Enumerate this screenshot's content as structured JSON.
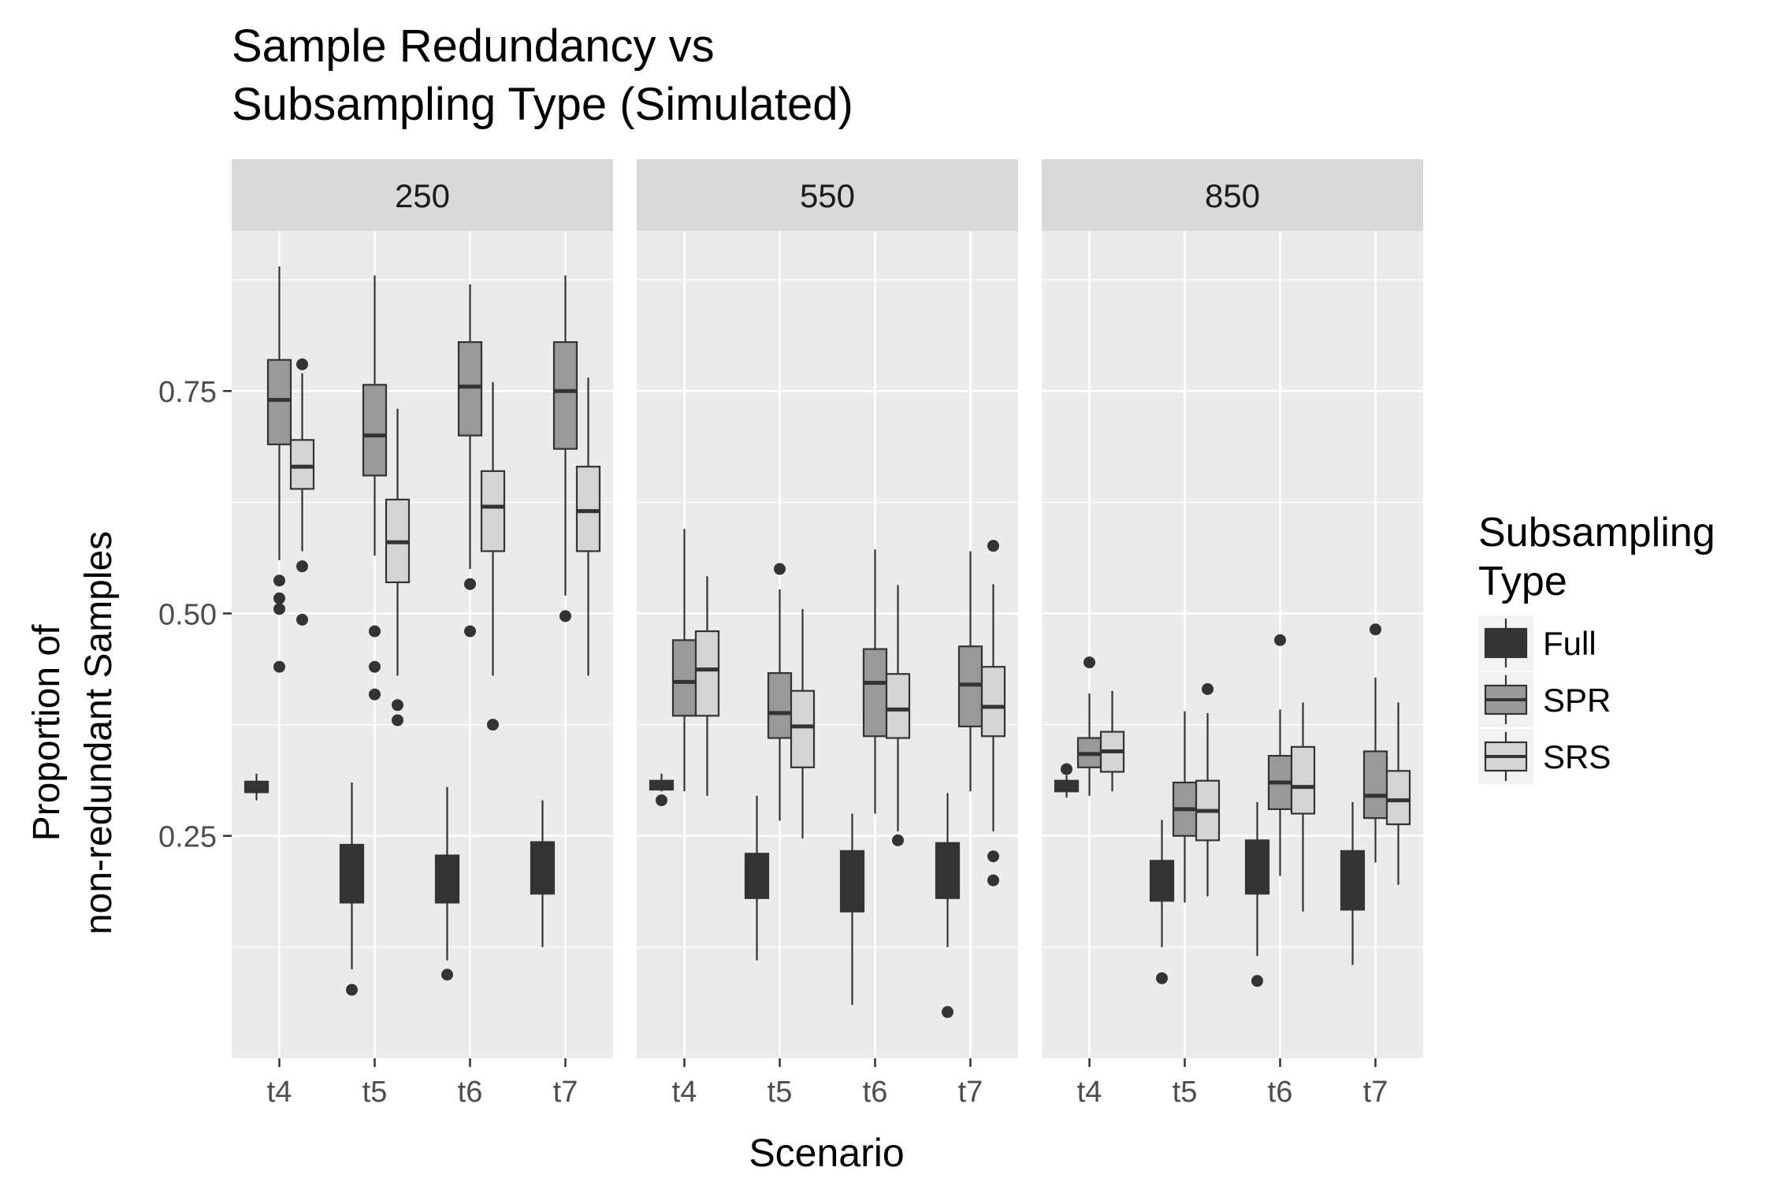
{
  "chart_data": {
    "type": "boxplot",
    "title_lines": [
      "Sample Redundancy vs",
      "Subsampling Type (Simulated)"
    ],
    "xlabel": "Scenario",
    "ylabel_lines": [
      "Proportion of",
      "non-redundant Samples"
    ],
    "ylim": [
      0.0,
      0.93
    ],
    "yticks": [
      0.25,
      0.5,
      0.75
    ],
    "ytick_labels": [
      "0.25",
      "0.50",
      "0.75"
    ],
    "categories": [
      "t4",
      "t5",
      "t6",
      "t7"
    ],
    "grid": true,
    "legend": {
      "title_lines": [
        "Subsampling",
        "Type"
      ],
      "placement": "right",
      "entries": [
        {
          "name": "Full",
          "fill": "#333333"
        },
        {
          "name": "SPR",
          "fill": "#999999"
        },
        {
          "name": "SRS",
          "fill": "#d4d4d4"
        }
      ]
    },
    "panels": [
      {
        "label": "250",
        "groups": [
          {
            "category": "t4",
            "boxes": {
              "Full": {
                "lo": 0.29,
                "q1": 0.299,
                "med": 0.303,
                "q3": 0.311,
                "hi": 0.32,
                "out": []
              },
              "SPR": {
                "lo": 0.56,
                "q1": 0.69,
                "med": 0.74,
                "q3": 0.785,
                "hi": 0.89,
                "out": [
                  0.537,
                  0.517,
                  0.505,
                  0.44
                ]
              },
              "SRS": {
                "lo": 0.57,
                "q1": 0.64,
                "med": 0.665,
                "q3": 0.695,
                "hi": 0.77,
                "out": [
                  0.78,
                  0.553,
                  0.493
                ]
              }
            }
          },
          {
            "category": "t5",
            "boxes": {
              "Full": {
                "lo": 0.1,
                "q1": 0.175,
                "med": 0.21,
                "q3": 0.24,
                "hi": 0.31,
                "out": [
                  0.077
                ]
              },
              "SPR": {
                "lo": 0.565,
                "q1": 0.655,
                "med": 0.7,
                "q3": 0.757,
                "hi": 0.88,
                "out": [
                  0.48,
                  0.44,
                  0.409
                ]
              },
              "SRS": {
                "lo": 0.43,
                "q1": 0.535,
                "med": 0.58,
                "q3": 0.628,
                "hi": 0.73,
                "out": [
                  0.397,
                  0.38
                ]
              }
            }
          },
          {
            "category": "t6",
            "boxes": {
              "Full": {
                "lo": 0.11,
                "q1": 0.175,
                "med": 0.21,
                "q3": 0.228,
                "hi": 0.305,
                "out": [
                  0.094
                ]
              },
              "SPR": {
                "lo": 0.55,
                "q1": 0.7,
                "med": 0.755,
                "q3": 0.805,
                "hi": 0.87,
                "out": [
                  0.533,
                  0.48
                ]
              },
              "SRS": {
                "lo": 0.43,
                "q1": 0.57,
                "med": 0.62,
                "q3": 0.66,
                "hi": 0.76,
                "out": [
                  0.375
                ]
              }
            }
          },
          {
            "category": "t7",
            "boxes": {
              "Full": {
                "lo": 0.125,
                "q1": 0.185,
                "med": 0.215,
                "q3": 0.243,
                "hi": 0.29,
                "out": []
              },
              "SPR": {
                "lo": 0.52,
                "q1": 0.685,
                "med": 0.75,
                "q3": 0.805,
                "hi": 0.88,
                "out": [
                  0.497
                ]
              },
              "SRS": {
                "lo": 0.43,
                "q1": 0.57,
                "med": 0.615,
                "q3": 0.665,
                "hi": 0.765,
                "out": []
              }
            }
          }
        ]
      },
      {
        "label": "550",
        "groups": [
          {
            "category": "t4",
            "boxes": {
              "Full": {
                "lo": 0.3,
                "q1": 0.302,
                "med": 0.307,
                "q3": 0.312,
                "hi": 0.32,
                "out": [
                  0.29
                ]
              },
              "SPR": {
                "lo": 0.3,
                "q1": 0.385,
                "med": 0.423,
                "q3": 0.47,
                "hi": 0.595,
                "out": []
              },
              "SRS": {
                "lo": 0.295,
                "q1": 0.385,
                "med": 0.437,
                "q3": 0.48,
                "hi": 0.542,
                "out": []
              }
            }
          },
          {
            "category": "t5",
            "boxes": {
              "Full": {
                "lo": 0.11,
                "q1": 0.18,
                "med": 0.205,
                "q3": 0.23,
                "hi": 0.295,
                "out": []
              },
              "SPR": {
                "lo": 0.267,
                "q1": 0.36,
                "med": 0.388,
                "q3": 0.433,
                "hi": 0.527,
                "out": [
                  0.55
                ]
              },
              "SRS": {
                "lo": 0.247,
                "q1": 0.327,
                "med": 0.373,
                "q3": 0.413,
                "hi": 0.505,
                "out": []
              }
            }
          },
          {
            "category": "t6",
            "boxes": {
              "Full": {
                "lo": 0.06,
                "q1": 0.165,
                "med": 0.2,
                "q3": 0.233,
                "hi": 0.275,
                "out": []
              },
              "SPR": {
                "lo": 0.275,
                "q1": 0.362,
                "med": 0.422,
                "q3": 0.46,
                "hi": 0.572,
                "out": []
              },
              "SRS": {
                "lo": 0.255,
                "q1": 0.36,
                "med": 0.392,
                "q3": 0.432,
                "hi": 0.532,
                "out": [
                  0.245
                ]
              }
            }
          },
          {
            "category": "t7",
            "boxes": {
              "Full": {
                "lo": 0.125,
                "q1": 0.18,
                "med": 0.215,
                "q3": 0.242,
                "hi": 0.298,
                "out": [
                  0.052
                ]
              },
              "SPR": {
                "lo": 0.3,
                "q1": 0.373,
                "med": 0.42,
                "q3": 0.463,
                "hi": 0.57,
                "out": []
              },
              "SRS": {
                "lo": 0.255,
                "q1": 0.362,
                "med": 0.395,
                "q3": 0.44,
                "hi": 0.533,
                "out": [
                  0.576,
                  0.227,
                  0.2
                ]
              }
            }
          }
        ]
      },
      {
        "label": "850",
        "groups": [
          {
            "category": "t4",
            "boxes": {
              "Full": {
                "lo": 0.293,
                "q1": 0.3,
                "med": 0.305,
                "q3": 0.312,
                "hi": 0.318,
                "out": [
                  0.325
                ]
              },
              "SPR": {
                "lo": 0.295,
                "q1": 0.327,
                "med": 0.342,
                "q3": 0.36,
                "hi": 0.41,
                "out": [
                  0.445
                ]
              },
              "SRS": {
                "lo": 0.3,
                "q1": 0.322,
                "med": 0.345,
                "q3": 0.367,
                "hi": 0.413,
                "out": []
              }
            }
          },
          {
            "category": "t5",
            "boxes": {
              "Full": {
                "lo": 0.125,
                "q1": 0.177,
                "med": 0.2,
                "q3": 0.222,
                "hi": 0.268,
                "out": [
                  0.09
                ]
              },
              "SPR": {
                "lo": 0.175,
                "q1": 0.25,
                "med": 0.28,
                "q3": 0.31,
                "hi": 0.39,
                "out": []
              },
              "SRS": {
                "lo": 0.182,
                "q1": 0.245,
                "med": 0.278,
                "q3": 0.312,
                "hi": 0.388,
                "out": [
                  0.415
                ]
              }
            }
          },
          {
            "category": "t6",
            "boxes": {
              "Full": {
                "lo": 0.115,
                "q1": 0.185,
                "med": 0.22,
                "q3": 0.245,
                "hi": 0.288,
                "out": [
                  0.087
                ]
              },
              "SPR": {
                "lo": 0.205,
                "q1": 0.28,
                "med": 0.31,
                "q3": 0.34,
                "hi": 0.392,
                "out": [
                  0.47
                ]
              },
              "SRS": {
                "lo": 0.165,
                "q1": 0.275,
                "med": 0.305,
                "q3": 0.35,
                "hi": 0.4,
                "out": []
              }
            }
          },
          {
            "category": "t7",
            "boxes": {
              "Full": {
                "lo": 0.105,
                "q1": 0.167,
                "med": 0.2,
                "q3": 0.233,
                "hi": 0.288,
                "out": []
              },
              "SPR": {
                "lo": 0.22,
                "q1": 0.27,
                "med": 0.295,
                "q3": 0.345,
                "hi": 0.428,
                "out": [
                  0.482
                ]
              },
              "SRS": {
                "lo": 0.195,
                "q1": 0.263,
                "med": 0.29,
                "q3": 0.323,
                "hi": 0.4,
                "out": []
              }
            }
          }
        ]
      }
    ]
  }
}
